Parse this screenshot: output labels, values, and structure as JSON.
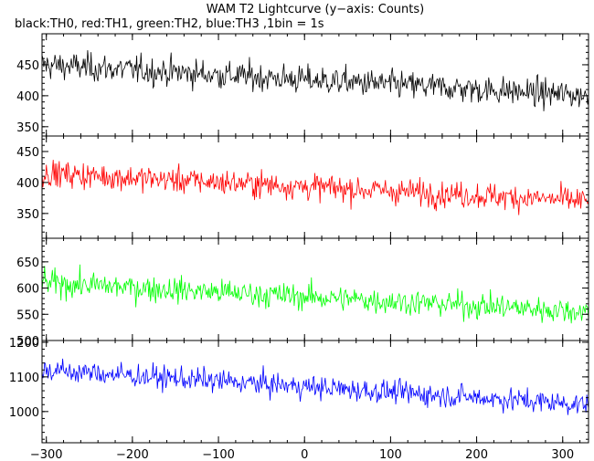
{
  "chart_data": {
    "type": "line",
    "title": "WAM T2 Lightcurve (y−axis: Counts)",
    "subtitle": "black:TH0, red:TH1, green:TH2, blue:TH3 ,1bin = 1s",
    "xlabel": "",
    "ylabel": "",
    "xlim": [
      -305,
      330
    ],
    "x_ticks": [
      "−300",
      "−200",
      "−100",
      "0",
      "100",
      "200",
      "300"
    ],
    "grid": false,
    "panels": [
      {
        "series": "TH0",
        "color": "#000000",
        "ylim": [
          335,
          500
        ],
        "y_ticks": [
          350,
          400,
          450
        ],
        "trend_start": 450,
        "trend_end": 400,
        "noise": 26
      },
      {
        "series": "TH1",
        "color": "#ff0000",
        "ylim": [
          310,
          475
        ],
        "y_ticks": [
          350,
          400,
          450
        ],
        "trend_start": 415,
        "trend_end": 370,
        "noise": 24
      },
      {
        "series": "TH2",
        "color": "#00ff00",
        "ylim": [
          500,
          695
        ],
        "y_ticks": [
          500,
          550,
          600,
          650
        ],
        "trend_start": 610,
        "trend_end": 555,
        "noise": 28
      },
      {
        "series": "TH3",
        "color": "#0000ff",
        "ylim": [
          910,
          1205
        ],
        "y_ticks": [
          1000,
          1100,
          1200
        ],
        "trend_start": 1120,
        "trend_end": 1020,
        "noise": 38
      }
    ]
  }
}
